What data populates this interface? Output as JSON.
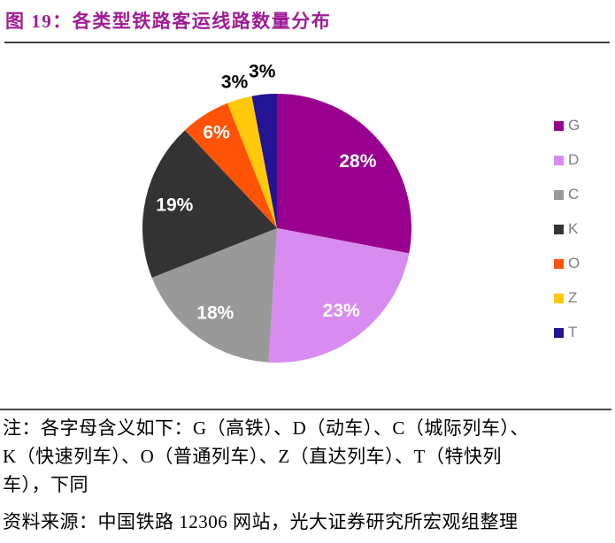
{
  "header": {
    "title": "图 19：各类型铁路客运线路数量分布"
  },
  "chart_data": {
    "type": "pie",
    "title": "各类型铁路客运线路数量分布",
    "unit": "percent",
    "start_angle_deg": 0,
    "direction": "clockwise",
    "legend_position": "right",
    "inside_label_color": "#FFFFFF",
    "outside_label_color": "#000000",
    "slices": [
      {
        "label": "G",
        "value": 28,
        "percent_label": "28%",
        "color": "#99008F",
        "label_placement": "inside",
        "label_r": 0.78
      },
      {
        "label": "D",
        "value": 23,
        "percent_label": "23%",
        "color": "#D98CF0",
        "label_placement": "inside",
        "label_r": 0.78
      },
      {
        "label": "C",
        "value": 18,
        "percent_label": "18%",
        "color": "#999999",
        "label_placement": "inside",
        "label_r": 0.78
      },
      {
        "label": "K",
        "value": 19,
        "percent_label": "19%",
        "color": "#333333",
        "label_placement": "inside",
        "label_r": 0.78
      },
      {
        "label": "O",
        "value": 6,
        "percent_label": "6%",
        "color": "#FF5408",
        "label_placement": "inside",
        "label_r": 0.84
      },
      {
        "label": "Z",
        "value": 3,
        "percent_label": "3%",
        "color": "#FFC80A",
        "label_placement": "outside",
        "label_r": 1.13
      },
      {
        "label": "T",
        "value": 3,
        "percent_label": "3%",
        "color": "#221492",
        "label_placement": "outside",
        "label_r": 1.17
      }
    ]
  },
  "footer": {
    "note_lines": [
      "注：各字母含义如下：G（高铁）、D（动车）、C（城际列车）、",
      "K（快速列车）、O（普通列车）、Z（直达列车）、T（特快列",
      "车），下同"
    ],
    "source": "资料来源：中国铁路 12306 网站，光大证券研究所宏观组整理"
  },
  "colors": {
    "title_text": "#A01C96",
    "legend_text": "#7F7F7F",
    "title_rule": "#404040",
    "note_rule": "#4D4D4D",
    "note_text": "#000000"
  }
}
